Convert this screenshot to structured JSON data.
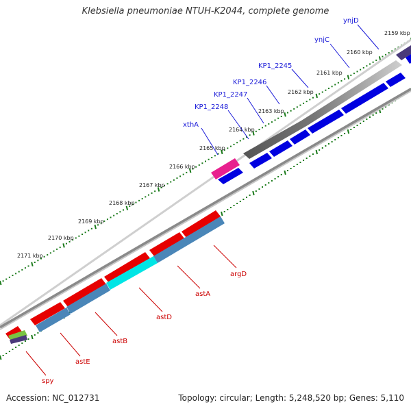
{
  "title": "Klebsiella pneumoniae NTUH-K2044, complete genome",
  "footer": {
    "accession": "Accession: NC_012731",
    "summary": "Topology: circular; Length: 5,248,520 bp; Genes: 5,110"
  },
  "ticks": [
    "2159 kbp",
    "2160 kbp",
    "2161 kbp",
    "2162 kbp",
    "2163 kbp",
    "2164 kbp",
    "2165 kbp",
    "2166 kbp",
    "2167 kbp",
    "2168 kbp",
    "2169 kbp",
    "2170 kbp",
    "2171 kbp"
  ],
  "genes_top": [
    "ynjD",
    "ynjC",
    "KP1_2245",
    "KP1_2246",
    "KP1_2247",
    "KP1_2248",
    "xthA"
  ],
  "genes_bottom": [
    "argD",
    "astA",
    "astD",
    "astB",
    "astE",
    "spy"
  ],
  "colors": {
    "forward_cds": "#0000e0",
    "reverse_cds": "#e60000",
    "reverse_feature": "#4a86b8",
    "highlight": "#00e5e5",
    "pink_feature": "#e8208f",
    "grey_dark": "#555555",
    "grey_light": "#c4c4c4",
    "purple": "#4a3a7a",
    "tick_green": "#1a7a1a"
  }
}
